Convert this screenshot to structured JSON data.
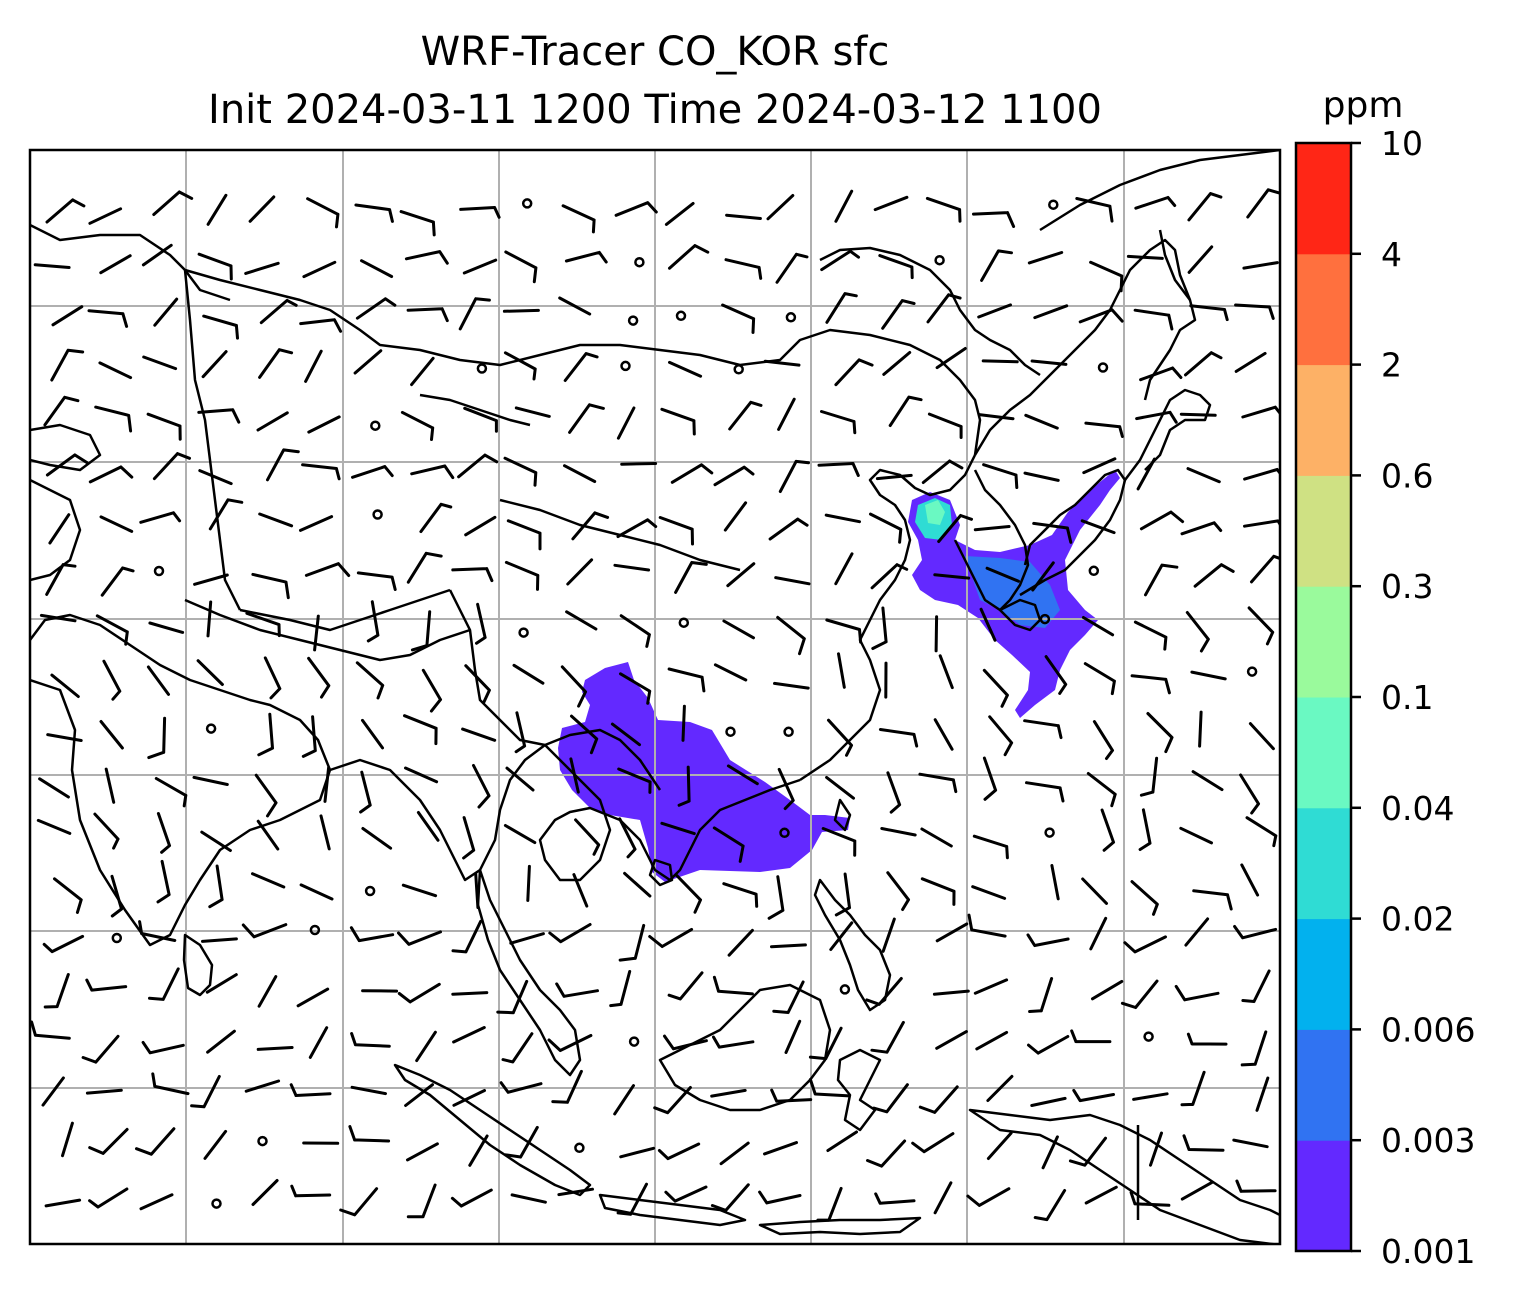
{
  "figure": {
    "title_line1": "WRF-Tracer CO_KOR sfc",
    "title_line2": "Init 2024-03-11 1200 Time 2024-03-12 1100"
  },
  "colorbar": {
    "unit": "ppm",
    "levels": [
      "0.001",
      "0.003",
      "0.006",
      "0.02",
      "0.04",
      "0.1",
      "0.3",
      "0.6",
      "2",
      "4",
      "10"
    ],
    "colors": [
      "#6329ff",
      "#3073f2",
      "#02b1ee",
      "#2fdcd4",
      "#6af9c2",
      "#9afa9c",
      "#cfe183",
      "#fdb166",
      "#ff703e",
      "#ff2616"
    ]
  },
  "map": {
    "gridlines": true,
    "tracer_regions": [
      "Indochina / southern China plume",
      "Korea / Yellow Sea / Japan plume"
    ],
    "wind_barbs": true
  }
}
